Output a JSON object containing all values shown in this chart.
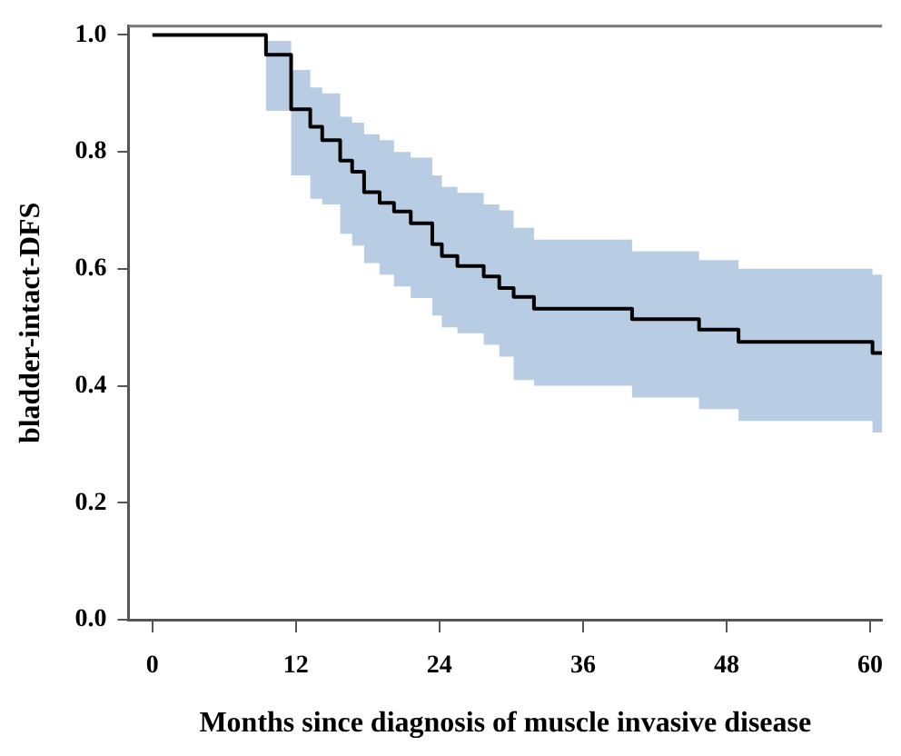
{
  "chart_data": {
    "type": "step",
    "xlabel": "Months since diagnosis of muscle invasive disease",
    "ylabel": "bladder-intact-DFS",
    "xlim": [
      -2,
      61
    ],
    "xticks": [
      0,
      12,
      24,
      36,
      48,
      60
    ],
    "ylim": [
      0,
      1.015
    ],
    "yticks": [
      {
        "value": 0,
        "label": "0.0"
      },
      0.2,
      0.4,
      0.6,
      0.8,
      {
        "value": 1,
        "label": "1.0"
      }
    ],
    "grid": false,
    "legend": false,
    "marker": "none",
    "line_style": "solid",
    "x": [
      0,
      9.5,
      11.6,
      13.2,
      14.2,
      15.7,
      16.7,
      17.7,
      19.0,
      20.2,
      21.6,
      23.4,
      24.2,
      25.5,
      27.7,
      29.0,
      30.2,
      31.9,
      40.1,
      45.7,
      49.0,
      60.2,
      61
    ],
    "series": [
      {
        "color": "#000000",
        "values": [
          1.0,
          0.966,
          0.873,
          0.843,
          0.82,
          0.785,
          0.766,
          0.731,
          0.713,
          0.698,
          0.678,
          0.642,
          0.622,
          0.605,
          0.587,
          0.567,
          0.552,
          0.532,
          0.514,
          0.496,
          0.475,
          0.456,
          0.456
        ],
        "upper": [
          1.0,
          0.99,
          0.94,
          0.91,
          0.9,
          0.86,
          0.85,
          0.83,
          0.82,
          0.8,
          0.79,
          0.76,
          0.74,
          0.73,
          0.71,
          0.7,
          0.67,
          0.65,
          0.63,
          0.615,
          0.6,
          0.59,
          0.59
        ],
        "lower": [
          1.0,
          0.87,
          0.76,
          0.72,
          0.71,
          0.66,
          0.64,
          0.61,
          0.59,
          0.57,
          0.55,
          0.52,
          0.5,
          0.49,
          0.47,
          0.45,
          0.41,
          0.4,
          0.38,
          0.36,
          0.34,
          0.32,
          0.32
        ]
      }
    ]
  }
}
